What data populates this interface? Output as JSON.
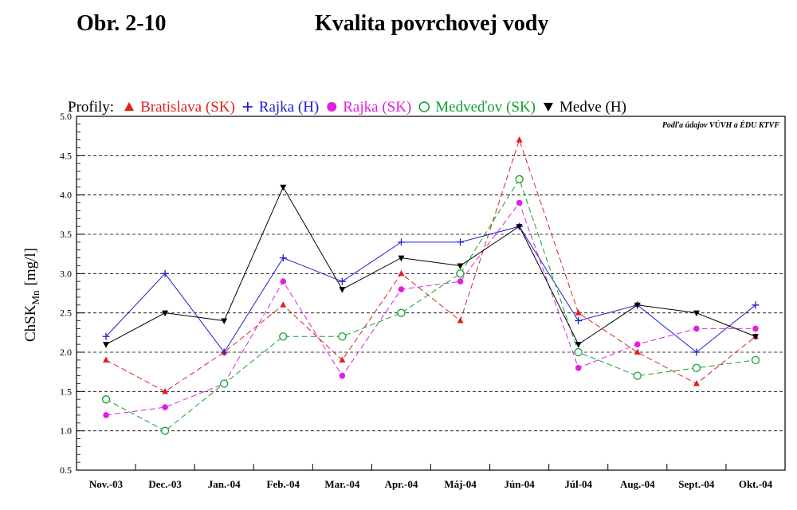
{
  "header": {
    "figure_label": "Obr. 2-10",
    "title": "Kvalita povrchovej vody"
  },
  "chart_data": {
    "type": "line",
    "title": "Kvalita povrchovej vody",
    "ylabel_main": "ChSK",
    "ylabel_sub": "Mn",
    "ylabel_unit": "[mg/l]",
    "source_note": "Podľa údajov VÚVH a ÉDU KTVF",
    "legend_prefix": "Profily:",
    "ylim": [
      0.5,
      5.0
    ],
    "ytick_step": 0.5,
    "yticks": [
      "0.5",
      "1.0",
      "1.5",
      "2.0",
      "2.5",
      "3.0",
      "3.5",
      "4.0",
      "4.5",
      "5.0"
    ],
    "grid": "horizontal dashed",
    "legend_position": "top",
    "categories": [
      "Nov.-03",
      "Dec.-03",
      "Jan.-04",
      "Feb.-04",
      "Mar.-04",
      "Apr.-04",
      "Máj-04",
      "Jún-04",
      "Júl-04",
      "Aug.-04",
      "Sept.-04",
      "Okt.-04"
    ],
    "series": [
      {
        "name": "Bratislava (SK)",
        "color": "#e02020",
        "dash": "dashed",
        "marker": "triangle-up",
        "values": [
          1.9,
          1.5,
          2.0,
          2.6,
          1.9,
          3.0,
          2.4,
          4.7,
          2.5,
          2.0,
          1.6,
          2.2
        ]
      },
      {
        "name": "Rajka (H)",
        "color": "#2020d0",
        "dash": "solid",
        "marker": "plus",
        "values": [
          2.2,
          3.0,
          2.0,
          3.2,
          2.9,
          3.4,
          3.4,
          3.6,
          2.4,
          2.6,
          2.0,
          2.6
        ]
      },
      {
        "name": "Rajka (SK)",
        "color": "#e020e0",
        "dash": "dashed",
        "marker": "circle-filled",
        "values": [
          1.2,
          1.3,
          1.6,
          2.9,
          1.7,
          2.8,
          2.9,
          3.9,
          1.8,
          2.1,
          2.3,
          2.3
        ]
      },
      {
        "name": "Medveďov (SK)",
        "color": "#10a030",
        "dash": "dashed",
        "marker": "circle-open",
        "values": [
          1.4,
          1.0,
          1.6,
          2.2,
          2.2,
          2.5,
          3.0,
          4.2,
          2.0,
          1.7,
          1.8,
          1.9
        ]
      },
      {
        "name": "Medve (H)",
        "color": "#000000",
        "dash": "solid",
        "marker": "triangle-down",
        "values": [
          2.1,
          2.5,
          2.4,
          4.1,
          2.8,
          3.2,
          3.1,
          3.6,
          2.1,
          2.6,
          2.5,
          2.2
        ]
      }
    ]
  }
}
